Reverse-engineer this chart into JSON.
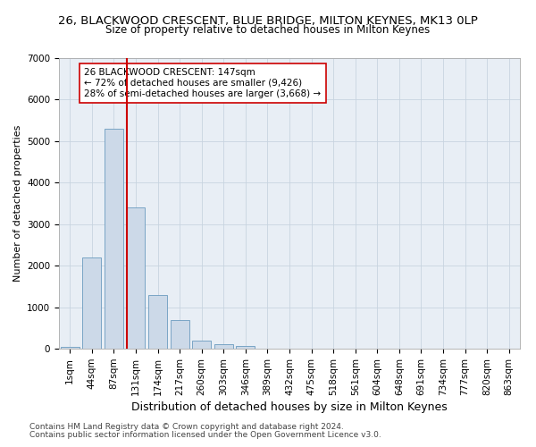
{
  "title": "26, BLACKWOOD CRESCENT, BLUE BRIDGE, MILTON KEYNES, MK13 0LP",
  "subtitle": "Size of property relative to detached houses in Milton Keynes",
  "xlabel": "Distribution of detached houses by size in Milton Keynes",
  "ylabel": "Number of detached properties",
  "footer_line1": "Contains HM Land Registry data © Crown copyright and database right 2024.",
  "footer_line2": "Contains public sector information licensed under the Open Government Licence v3.0.",
  "bar_labels": [
    "1sqm",
    "44sqm",
    "87sqm",
    "131sqm",
    "174sqm",
    "217sqm",
    "260sqm",
    "303sqm",
    "346sqm",
    "389sqm",
    "432sqm",
    "475sqm",
    "518sqm",
    "561sqm",
    "604sqm",
    "648sqm",
    "691sqm",
    "734sqm",
    "777sqm",
    "820sqm",
    "863sqm"
  ],
  "bar_values": [
    50,
    2200,
    5300,
    3400,
    1300,
    700,
    200,
    100,
    70,
    10,
    5,
    0,
    0,
    0,
    0,
    0,
    0,
    0,
    0,
    0,
    0
  ],
  "bar_color": "#ccd9e8",
  "bar_edge_color": "#6a9bbf",
  "annotation_text": "26 BLACKWOOD CRESCENT: 147sqm\n← 72% of detached houses are smaller (9,426)\n28% of semi-detached houses are larger (3,668) →",
  "annotation_box_edge": "#cc0000",
  "vline_color": "#cc0000",
  "ylim": [
    0,
    7000
  ],
  "yticks": [
    0,
    1000,
    2000,
    3000,
    4000,
    5000,
    6000,
    7000
  ],
  "title_fontsize": 9.5,
  "subtitle_fontsize": 8.5,
  "xlabel_fontsize": 9,
  "ylabel_fontsize": 8,
  "tick_fontsize": 7.5,
  "annotation_fontsize": 7.5,
  "footer_fontsize": 6.5,
  "background_color": "#ffffff",
  "plot_bg_color": "#e8eef5",
  "grid_color": "#c8d4e0"
}
